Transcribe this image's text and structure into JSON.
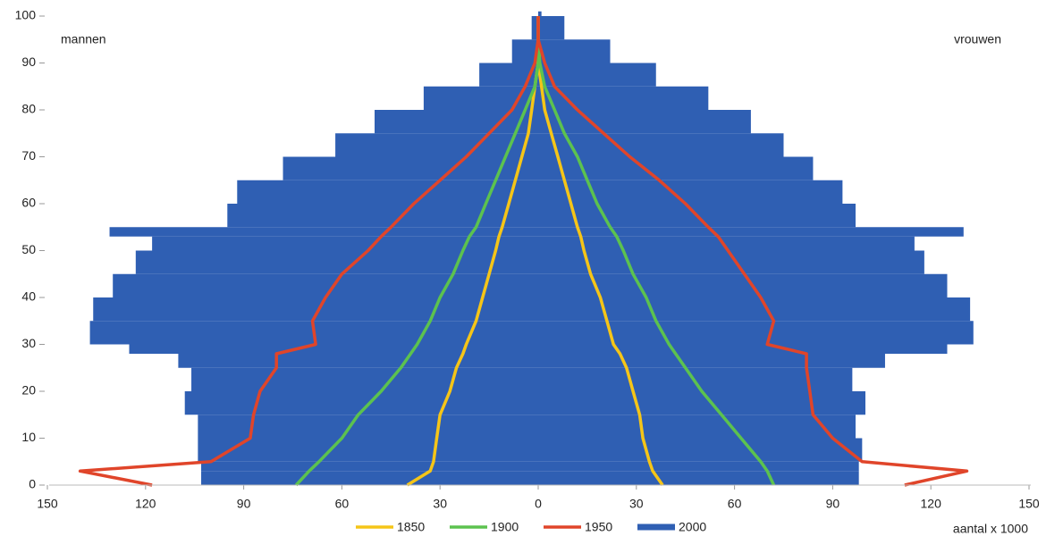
{
  "chart_data": {
    "type": "pyramid",
    "left_label": "mannen",
    "right_label": "vrouwen",
    "x_label": "aantal x 1000",
    "ages": [
      0,
      3,
      5,
      10,
      15,
      20,
      25,
      28,
      30,
      35,
      40,
      45,
      50,
      53,
      55,
      60,
      65,
      70,
      75,
      80,
      85,
      90,
      95,
      100
    ],
    "ylim": [
      0,
      100
    ],
    "yticks": [
      0,
      10,
      20,
      30,
      40,
      50,
      60,
      70,
      80,
      90,
      100
    ],
    "xlim": [
      0,
      150
    ],
    "xticks": [
      0,
      30,
      60,
      90,
      120,
      150
    ],
    "series": [
      {
        "name": "1850",
        "color": "#f5c518",
        "kind": "line",
        "men": [
          40,
          33,
          32,
          31,
          30,
          27,
          25,
          23,
          22,
          19,
          17,
          15,
          13,
          12,
          11,
          9,
          7,
          5,
          3,
          2,
          1,
          0,
          0,
          0
        ],
        "women": [
          38,
          35,
          34,
          32,
          31,
          29,
          27,
          25,
          23,
          21,
          19,
          16,
          14,
          13,
          12,
          10,
          8,
          6,
          4,
          2,
          1,
          0,
          0,
          0
        ]
      },
      {
        "name": "1900",
        "color": "#5cc24f",
        "kind": "line",
        "men": [
          74,
          70,
          67,
          60,
          55,
          48,
          42,
          39,
          37,
          33,
          30,
          26,
          23,
          21,
          19,
          16,
          13,
          10,
          7,
          4,
          1,
          0,
          0,
          0
        ],
        "women": [
          72,
          70,
          68,
          62,
          56,
          50,
          45,
          42,
          40,
          36,
          33,
          29,
          26,
          24,
          22,
          18,
          15,
          12,
          8,
          5,
          2,
          0.5,
          0,
          0
        ]
      },
      {
        "name": "1950",
        "color": "#e0452a",
        "kind": "line",
        "men": [
          118,
          140,
          100,
          88,
          87,
          85,
          80,
          80,
          68,
          69,
          65,
          60,
          52,
          48,
          45,
          38,
          30,
          22,
          15,
          8,
          4,
          1,
          0,
          0
        ],
        "women": [
          112,
          131,
          99,
          90,
          84,
          83,
          82,
          82,
          70,
          72,
          68,
          63,
          58,
          55,
          52,
          45,
          37,
          28,
          20,
          12,
          5,
          2,
          0,
          0
        ]
      },
      {
        "name": "2000",
        "color": "#2f5fb3",
        "kind": "bar",
        "men": [
          103,
          103,
          104,
          104,
          108,
          106,
          110,
          125,
          137,
          136,
          130,
          123,
          118,
          131,
          95,
          92,
          78,
          62,
          50,
          35,
          18,
          8,
          2,
          0
        ],
        "women": [
          98,
          98,
          99,
          97,
          100,
          96,
          106,
          125,
          133,
          132,
          125,
          118,
          115,
          130,
          97,
          93,
          84,
          75,
          65,
          52,
          36,
          22,
          8,
          1
        ]
      }
    ]
  }
}
